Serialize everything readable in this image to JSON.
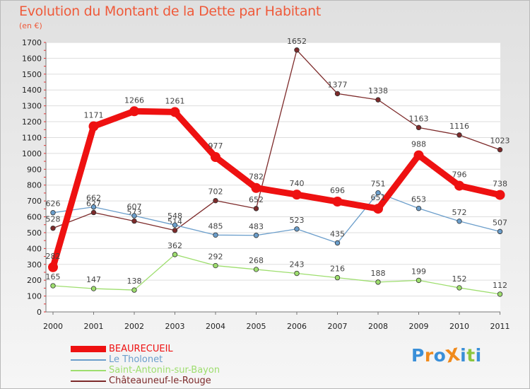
{
  "chart_data": {
    "type": "line",
    "title": "Evolution du Montant de la Dette par Habitant",
    "subtitle": "(en €)",
    "categories": [
      "2000",
      "2001",
      "2002",
      "2003",
      "2004",
      "2005",
      "2006",
      "2007",
      "2008",
      "2009",
      "2010",
      "2011"
    ],
    "ylim": [
      0,
      1700
    ],
    "yticks": [
      0,
      100,
      200,
      300,
      400,
      500,
      600,
      700,
      800,
      900,
      1000,
      1100,
      1200,
      1300,
      1400,
      1500,
      1600,
      1700
    ],
    "grid": true,
    "legend_position": "bottom-left",
    "series": [
      {
        "name": "BEAUREСUEIL",
        "color": "#ee1111",
        "values": [
          282,
          1171,
          1266,
          1261,
          977,
          782,
          740,
          696,
          651,
          988,
          796,
          738
        ]
      },
      {
        "name": "Le Tholonet",
        "color": "#6b9ecb",
        "values": [
          626,
          662,
          607,
          548,
          485,
          483,
          523,
          435,
          751,
          653,
          572,
          507
        ]
      },
      {
        "name": "Saint-Antonin-sur-Bayon",
        "color": "#9ede6e",
        "values": [
          165,
          147,
          138,
          362,
          292,
          268,
          243,
          216,
          188,
          199,
          152,
          112
        ]
      },
      {
        "name": "Châteauneuf-le-Rouge",
        "color": "#7d2a2a",
        "values": [
          528,
          627,
          573,
          514,
          702,
          652,
          1652,
          1377,
          1338,
          1163,
          1116,
          1023
        ]
      }
    ]
  },
  "logo": {
    "text": "ProXiti",
    "letters": [
      "P",
      "r",
      "o",
      "X",
      "i",
      "t",
      "i"
    ],
    "colors": [
      "#3a8fd8",
      "#f08a1c",
      "#3a8fd8",
      "#f08a1c",
      "#3a8fd8",
      "#8cc63f",
      "#3a8fd8"
    ]
  }
}
